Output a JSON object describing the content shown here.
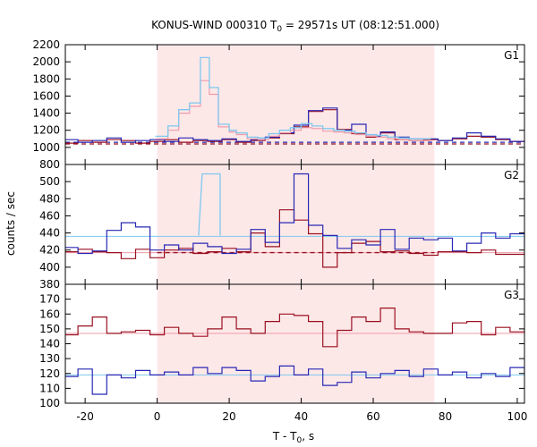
{
  "title_prefix": "KONUS-WIND 000310 T",
  "title_sub": "0",
  "title_suffix": " = 29571s UT (08:12:51.000)",
  "xlabel_prefix": "T - T",
  "xlabel_sub": "0",
  "xlabel_suffix": ", s",
  "ylabel": "counts / sec",
  "colors": {
    "shade": "#fde8e8",
    "light_blue": "#7ec8ee",
    "light_pink": "#ee9aaa",
    "dark_blue": "#2828b4",
    "dark_red": "#9a1020",
    "bg_blue": "#7ec8ee",
    "bg_pink": "#ee9aaa"
  },
  "chart_data": {
    "type": "line",
    "x_ticks": [
      -20,
      0,
      20,
      40,
      60,
      80,
      100
    ],
    "x_tick_labels": [
      "-20",
      "0",
      "20",
      "40",
      "60",
      "80",
      "100"
    ],
    "xlim": [
      -25.5,
      102
    ],
    "shaded_interval": [
      0,
      77
    ],
    "panels": [
      {
        "name": "G1",
        "ylim": [
          800,
          2200
        ],
        "y_ticks": [
          800,
          1000,
          1200,
          1400,
          1600,
          1800,
          2000,
          2200
        ],
        "y_tick_labels": [
          "800",
          "1000",
          "1200",
          "1400",
          "1600",
          "1800",
          "2000",
          "2200"
        ],
        "background_levels": [
          1060,
          1040
        ],
        "burst_step_edges": [
          -0.5,
          3,
          6,
          9,
          12,
          14.5,
          17,
          20,
          22,
          25,
          28,
          31,
          34,
          37,
          40,
          43,
          46,
          49,
          52,
          55,
          58,
          61,
          64,
          67,
          70,
          73,
          76
        ],
        "burst_light_blue": [
          1130,
          1250,
          1440,
          1520,
          2050,
          1700,
          1270,
          1200,
          1170,
          1120,
          1110,
          1160,
          1200,
          1230,
          1280,
          1250,
          1220,
          1200,
          1190,
          1170,
          1150,
          1140,
          1120,
          1110,
          1100,
          1100
        ],
        "burst_light_pink": [
          1100,
          1200,
          1400,
          1480,
          1780,
          1620,
          1240,
          1180,
          1150,
          1100,
          1090,
          1130,
          1170,
          1200,
          1230,
          1220,
          1190,
          1180,
          1170,
          1150,
          1130,
          1120,
          1100,
          1090,
          1080,
          1080
        ],
        "step_width": 4,
        "blue_values": [
          1090,
          1060,
          1080,
          1110,
          1060,
          1080,
          1090,
          1070,
          1110,
          1090,
          1080,
          1100,
          1070,
          1090,
          1120,
          1170,
          1260,
          1430,
          1460,
          1200,
          1270,
          1130,
          1180,
          1120,
          1100,
          1100,
          1080,
          1110,
          1170,
          1130,
          1100,
          1070,
          1060,
          1090,
          1100,
          1120
        ],
        "red_values": [
          1050,
          1080,
          1060,
          1090,
          1080,
          1050,
          1070,
          1090,
          1060,
          1080,
          1070,
          1090,
          1060,
          1080,
          1110,
          1160,
          1240,
          1420,
          1440,
          1210,
          1160,
          1120,
          1170,
          1090,
          1080,
          1090,
          1080,
          1100,
          1130,
          1120,
          1090,
          1070,
          1080,
          1050,
          1080,
          1090
        ]
      },
      {
        "name": "G2",
        "ylim": [
          380,
          520
        ],
        "y_ticks": [
          380,
          400,
          420,
          440,
          460,
          480,
          500
        ],
        "y_tick_labels": [
          "380",
          "400",
          "420",
          "440",
          "460",
          "480",
          "500"
        ],
        "background_levels": [
          436,
          417
        ],
        "step_width": 4,
        "blue_values": [
          423,
          416,
          419,
          443,
          452,
          447,
          420,
          426,
          420,
          428,
          424,
          416,
          421,
          444,
          429,
          452,
          509,
          449,
          437,
          422,
          432,
          426,
          444,
          421,
          434,
          432,
          434,
          419,
          428,
          440,
          434,
          439,
          422,
          443,
          434,
          434
        ],
        "red_values": [
          418,
          421,
          418,
          417,
          410,
          421,
          411,
          420,
          422,
          416,
          418,
          422,
          418,
          440,
          424,
          467,
          455,
          439,
          400,
          417,
          428,
          430,
          418,
          419,
          416,
          414,
          418,
          418,
          417,
          420,
          415,
          415,
          416,
          416,
          423,
          409
        ]
      },
      {
        "name": "G3",
        "ylim": [
          100,
          180
        ],
        "y_ticks": [
          100,
          110,
          120,
          130,
          140,
          150,
          160,
          170
        ],
        "y_tick_labels": [
          "100",
          "110",
          "120",
          "130",
          "140",
          "150",
          "160",
          "170"
        ],
        "background_levels": [
          119,
          147
        ],
        "step_width": 4,
        "blue_values": [
          118,
          123,
          106,
          119,
          117,
          122,
          119,
          121,
          119,
          124,
          120,
          124,
          122,
          115,
          118,
          125,
          119,
          123,
          112,
          114,
          121,
          117,
          120,
          122,
          118,
          123,
          119,
          121,
          117,
          120,
          118,
          124,
          121,
          120,
          119,
          131
        ],
        "red_values": [
          146,
          152,
          158,
          147,
          148,
          149,
          146,
          151,
          147,
          145,
          150,
          158,
          150,
          147,
          155,
          160,
          159,
          155,
          138,
          149,
          158,
          155,
          164,
          150,
          148,
          147,
          147,
          154,
          155,
          146,
          151,
          148,
          150,
          148,
          152,
          150
        ]
      }
    ]
  }
}
